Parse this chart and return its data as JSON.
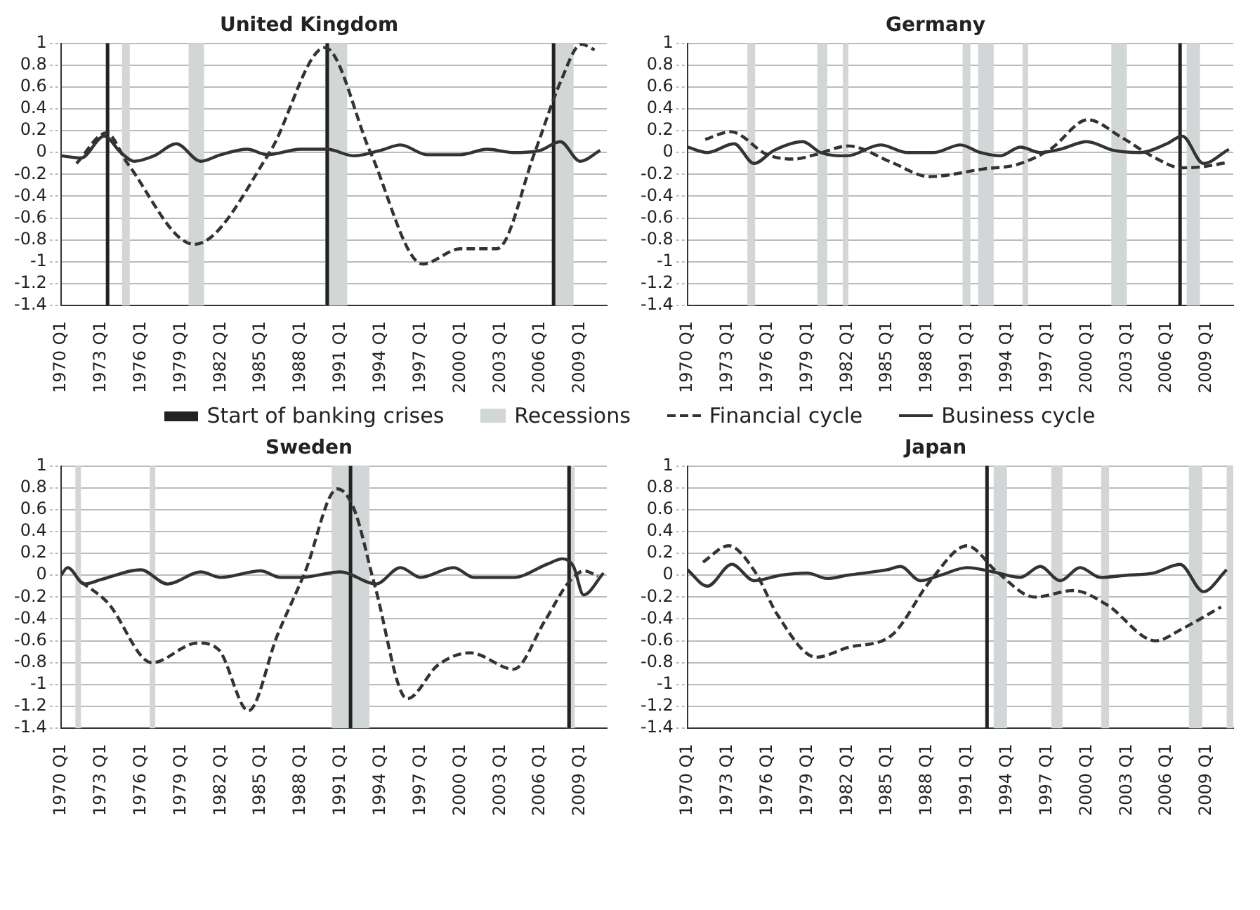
{
  "chart_data": [
    {
      "type": "line",
      "title": "United Kingdom",
      "xlim": [
        "1970-01",
        "2011-01"
      ],
      "ylim": [
        -1.4,
        1
      ],
      "xticks": [
        {
          "value": "1970-01",
          "label": "1970 Q1"
        },
        {
          "value": "1973-01",
          "label": "1973 Q1"
        },
        {
          "value": "1976-01",
          "label": "1976 Q1"
        },
        {
          "value": "1979-01",
          "label": "1979 Q1"
        },
        {
          "value": "1982-01",
          "label": "1982 Q1"
        },
        {
          "value": "1985-01",
          "label": "1985 Q1"
        },
        {
          "value": "1988-01",
          "label": "1988 Q1"
        },
        {
          "value": "1991-01",
          "label": "1991 Q1"
        },
        {
          "value": "1994-01",
          "label": "1994 Q1"
        },
        {
          "value": "1997-01",
          "label": "1997 Q1"
        },
        {
          "value": "2000-01",
          "label": "2000 Q1"
        },
        {
          "value": "2003-01",
          "label": "2003 Q1"
        },
        {
          "value": "2006-01",
          "label": "2006 Q1"
        },
        {
          "value": "2009-01",
          "label": "2009 Q1"
        }
      ],
      "yticks": [
        -1.4,
        -1.2,
        -1,
        -0.8,
        -0.6,
        -0.4,
        -0.2,
        0,
        0.2,
        0.4,
        0.6,
        0.8,
        1
      ],
      "grid": "y",
      "legend": "bottom",
      "series": [
        {
          "name": "Financial cycle",
          "color": "#333333",
          "line_style": "dashed",
          "x": [
            "1971-03",
            "1973-06",
            "1975-01",
            "1980-01",
            "1985-09",
            "1989-11",
            "1993-04",
            "1997-03",
            "2000-01",
            "2002-10",
            "2005-08",
            "2007-07",
            "2009-02",
            "2010-02"
          ],
          "values": [
            -0.1,
            0.18,
            -0.1,
            -0.84,
            0,
            0.96,
            0,
            -1.02,
            -0.88,
            -0.88,
            0,
            0.64,
            0.99,
            0.94
          ]
        },
        {
          "name": "Business cycle",
          "color": "#333333",
          "line_style": "solid",
          "x": [
            "1970-01",
            "1971-07",
            "1973-04",
            "1974-07",
            "1975-07",
            "1977-01",
            "1978-09",
            "1980-07",
            "1982-01",
            "1984-01",
            "1985-07",
            "1988-01",
            "1990-01",
            "1992-01",
            "1994-01",
            "1995-07",
            "1997-07",
            "2000-01",
            "2002-01",
            "2004-01",
            "2006-01",
            "2007-07",
            "2009-01",
            "2010-07"
          ],
          "values": [
            -0.03,
            -0.05,
            0.15,
            0,
            -0.08,
            -0.03,
            0.08,
            -0.08,
            -0.02,
            0.03,
            -0.02,
            0.03,
            0.03,
            -0.03,
            0.02,
            0.07,
            -0.02,
            -0.02,
            0.03,
            0,
            0.02,
            0.1,
            -0.08,
            0.02
          ]
        }
      ],
      "bands": [
        {
          "axis": "x",
          "from": "1974-08",
          "to": "1975-03",
          "color": "#d2d6d6",
          "label": "Recessions"
        },
        {
          "axis": "x",
          "from": "1979-08",
          "to": "1980-10",
          "color": "#d2d6d6"
        },
        {
          "axis": "x",
          "from": "1989-11",
          "to": "1991-07",
          "color": "#d2d6d6"
        },
        {
          "axis": "x",
          "from": "2007-02",
          "to": "2008-07",
          "color": "#d2d6d6"
        }
      ],
      "ref_lines": [
        {
          "axis": "x",
          "value": "1973-07",
          "color": "#222222",
          "label": "Start of banking crises"
        },
        {
          "axis": "x",
          "value": "1990-01",
          "color": "#222222"
        },
        {
          "axis": "x",
          "value": "2007-01",
          "color": "#222222"
        }
      ]
    },
    {
      "type": "line",
      "title": "Germany",
      "xlim": [
        "1970-01",
        "2011-01"
      ],
      "ylim": [
        -1.4,
        1
      ],
      "xticks": [
        {
          "value": "1970-01",
          "label": "1970 Q1"
        },
        {
          "value": "1973-01",
          "label": "1973 Q1"
        },
        {
          "value": "1976-01",
          "label": "1976 Q1"
        },
        {
          "value": "1979-01",
          "label": "1979 Q1"
        },
        {
          "value": "1982-01",
          "label": "1982 Q1"
        },
        {
          "value": "1985-01",
          "label": "1985 Q1"
        },
        {
          "value": "1988-01",
          "label": "1988 Q1"
        },
        {
          "value": "1991-01",
          "label": "1991 Q1"
        },
        {
          "value": "1994-01",
          "label": "1994 Q1"
        },
        {
          "value": "1997-01",
          "label": "1997 Q1"
        },
        {
          "value": "2000-01",
          "label": "2000 Q1"
        },
        {
          "value": "2003-01",
          "label": "2003 Q1"
        },
        {
          "value": "2006-01",
          "label": "2006 Q1"
        },
        {
          "value": "2009-01",
          "label": "2009 Q1"
        }
      ],
      "yticks": [
        -1.4,
        -1.2,
        -1,
        -0.8,
        -0.6,
        -0.4,
        -0.2,
        0,
        0.2,
        0.4,
        0.6,
        0.8,
        1
      ],
      "grid": "y",
      "series": [
        {
          "color": "#333333",
          "line_style": "dashed",
          "x": [
            "1971-05",
            "1973-04",
            "1976-01",
            "1978-01",
            "1979-08",
            "1982-02",
            "1985-05",
            "1988-03",
            "1992-04",
            "1994-10",
            "1997-04",
            "2000-02",
            "2002-08",
            "2005-01",
            "2007-02",
            "2008-09",
            "2010-08"
          ],
          "values": [
            0.12,
            0.19,
            -0.02,
            -0.06,
            -0.02,
            0.06,
            -0.09,
            -0.22,
            -0.15,
            -0.11,
            0.03,
            0.3,
            0.14,
            -0.04,
            -0.14,
            -0.13,
            -0.09
          ]
        },
        {
          "color": "#333333",
          "line_style": "solid",
          "x": [
            "1970-01",
            "1971-07",
            "1973-07",
            "1975-01",
            "1976-07",
            "1978-09",
            "1980-01",
            "1982-01",
            "1984-07",
            "1986-07",
            "1988-07",
            "1990-07",
            "1992-01",
            "1993-07",
            "1995-01",
            "1996-07",
            "1998-01",
            "2000-01",
            "2002-01",
            "2004-01",
            "2006-01",
            "2007-03",
            "2008-10",
            "2010-09"
          ],
          "values": [
            0.05,
            0,
            0.08,
            -0.1,
            0.02,
            0.1,
            0,
            -0.03,
            0.07,
            0,
            0,
            0.07,
            0,
            -0.03,
            0.05,
            0,
            0.03,
            0.1,
            0.02,
            0,
            0.08,
            0.15,
            -0.1,
            0.03
          ]
        }
      ],
      "bands": [
        {
          "axis": "x",
          "from": "1974-07",
          "to": "1975-02",
          "color": "#d2d6d6"
        },
        {
          "axis": "x",
          "from": "1979-10",
          "to": "1980-07",
          "color": "#d2d6d6"
        },
        {
          "axis": "x",
          "from": "1981-09",
          "to": "1982-02",
          "color": "#d2d6d6"
        },
        {
          "axis": "x",
          "from": "1990-09",
          "to": "1991-04",
          "color": "#d2d6d6"
        },
        {
          "axis": "x",
          "from": "1991-11",
          "to": "1993-01",
          "color": "#d2d6d6"
        },
        {
          "axis": "x",
          "from": "1995-03",
          "to": "1995-08",
          "color": "#d2d6d6"
        },
        {
          "axis": "x",
          "from": "2001-11",
          "to": "2003-01",
          "color": "#d2d6d6"
        },
        {
          "axis": "x",
          "from": "2007-07",
          "to": "2008-07",
          "color": "#d2d6d6"
        }
      ],
      "ref_lines": [
        {
          "axis": "x",
          "value": "2007-01",
          "color": "#222222"
        }
      ]
    },
    {
      "type": "line",
      "title": "Sweden",
      "xlim": [
        "1970-01",
        "2011-01"
      ],
      "ylim": [
        -1.4,
        1
      ],
      "xticks": [
        {
          "value": "1970-01",
          "label": "1970 Q1"
        },
        {
          "value": "1973-01",
          "label": "1973 Q1"
        },
        {
          "value": "1976-01",
          "label": "1976 Q1"
        },
        {
          "value": "1979-01",
          "label": "1979 Q1"
        },
        {
          "value": "1982-01",
          "label": "1982 Q1"
        },
        {
          "value": "1985-01",
          "label": "1985 Q1"
        },
        {
          "value": "1988-01",
          "label": "1988 Q1"
        },
        {
          "value": "1991-01",
          "label": "1991 Q1"
        },
        {
          "value": "1994-01",
          "label": "1994 Q1"
        },
        {
          "value": "1997-01",
          "label": "1997 Q1"
        },
        {
          "value": "2000-01",
          "label": "2000 Q1"
        },
        {
          "value": "2003-01",
          "label": "2003 Q1"
        },
        {
          "value": "2006-01",
          "label": "2006 Q1"
        },
        {
          "value": "2009-01",
          "label": "2009 Q1"
        }
      ],
      "yticks": [
        -1.4,
        -1.2,
        -1,
        -0.8,
        -0.6,
        -0.4,
        -0.2,
        0,
        0.2,
        0.4,
        0.6,
        0.8,
        1
      ],
      "grid": "y",
      "series": [
        {
          "color": "#333333",
          "line_style": "dashed",
          "x": [
            "1971-07",
            "1973-07",
            "1976-11",
            "1980-04",
            "1981-11",
            "1984-02",
            "1986-04",
            "1988-05",
            "1990-10",
            "1992-01",
            "1993-08",
            "1996-01",
            "1998-05",
            "2000-10",
            "2004-01",
            "2006-05",
            "2008-03",
            "2009-05",
            "2010-05"
          ],
          "values": [
            -0.06,
            -0.25,
            -0.8,
            -0.62,
            -0.68,
            -1.24,
            -0.55,
            0.03,
            0.79,
            0.61,
            -0.1,
            -1.13,
            -0.82,
            -0.71,
            -0.86,
            -0.42,
            -0.06,
            0.04,
            -0.01
          ]
        },
        {
          "color": "#333333",
          "line_style": "solid",
          "x": [
            "1970-01",
            "1970-07",
            "1971-10",
            "1973-01",
            "1976-01",
            "1978-01",
            "1980-07",
            "1982-01",
            "1985-01",
            "1986-07",
            "1988-01",
            "1991-01",
            "1993-09",
            "1995-07",
            "1997-01",
            "1999-07",
            "2001-01",
            "2004-01",
            "2006-07",
            "2007-09",
            "2008-07",
            "2009-04",
            "2010-10"
          ],
          "values": [
            0,
            0.07,
            -0.08,
            -0.04,
            0.05,
            -0.08,
            0.03,
            -0.02,
            0.04,
            -0.02,
            -0.02,
            0.03,
            -0.08,
            0.07,
            -0.02,
            0.07,
            -0.02,
            -0.02,
            0.1,
            0.15,
            0.08,
            -0.18,
            0.02
          ]
        }
      ],
      "bands": [
        {
          "axis": "x",
          "from": "1971-02",
          "to": "1971-07",
          "color": "#d2d6d6"
        },
        {
          "axis": "x",
          "from": "1976-09",
          "to": "1977-02",
          "color": "#d2d6d6"
        },
        {
          "axis": "x",
          "from": "1990-05",
          "to": "1993-03",
          "color": "#d2d6d6"
        },
        {
          "axis": "x",
          "from": "2008-01",
          "to": "2008-08",
          "color": "#d2d6d6"
        }
      ],
      "ref_lines": [
        {
          "axis": "x",
          "value": "1991-10",
          "color": "#222222"
        },
        {
          "axis": "x",
          "value": "2008-03",
          "color": "#222222"
        }
      ]
    },
    {
      "type": "line",
      "title": "Japan",
      "xlim": [
        "1970-01",
        "2011-01"
      ],
      "ylim": [
        -1.4,
        1
      ],
      "xticks": [
        {
          "value": "1970-01",
          "label": "1970 Q1"
        },
        {
          "value": "1973-01",
          "label": "1973 Q1"
        },
        {
          "value": "1976-01",
          "label": "1976 Q1"
        },
        {
          "value": "1979-01",
          "label": "1979 Q1"
        },
        {
          "value": "1982-01",
          "label": "1982 Q1"
        },
        {
          "value": "1985-01",
          "label": "1985 Q1"
        },
        {
          "value": "1988-01",
          "label": "1988 Q1"
        },
        {
          "value": "1991-01",
          "label": "1991 Q1"
        },
        {
          "value": "1994-01",
          "label": "1994 Q1"
        },
        {
          "value": "1997-01",
          "label": "1997 Q1"
        },
        {
          "value": "2000-01",
          "label": "2000 Q1"
        },
        {
          "value": "2003-01",
          "label": "2003 Q1"
        },
        {
          "value": "2006-01",
          "label": "2006 Q1"
        },
        {
          "value": "2009-01",
          "label": "2009 Q1"
        }
      ],
      "yticks": [
        -1.4,
        -1.2,
        -1,
        -0.8,
        -0.6,
        -0.4,
        -0.2,
        0,
        0.2,
        0.4,
        0.6,
        0.8,
        1
      ],
      "grid": "y",
      "series": [
        {
          "color": "#333333",
          "line_style": "dashed",
          "x": [
            "1971-03",
            "1973-02",
            "1975-02",
            "1976-10",
            "1979-09",
            "1982-02",
            "1985-05",
            "1988-04",
            "1991-01",
            "1993-04",
            "1996-02",
            "1999-01",
            "2001-07",
            "2005-03",
            "2007-03",
            "2010-02"
          ],
          "values": [
            0.12,
            0.27,
            0.03,
            -0.36,
            -0.75,
            -0.66,
            -0.55,
            -0.05,
            0.27,
            0.03,
            -0.2,
            -0.14,
            -0.27,
            -0.6,
            -0.49,
            -0.29
          ]
        },
        {
          "color": "#333333",
          "line_style": "solid",
          "x": [
            "1970-01",
            "1971-07",
            "1973-05",
            "1975-01",
            "1977-01",
            "1979-01",
            "1980-07",
            "1982-01",
            "1985-01",
            "1986-01",
            "1987-07",
            "1989-01",
            "1991-01",
            "1993-01",
            "1995-01",
            "1996-07",
            "1998-01",
            "1999-07",
            "2001-01",
            "2003-01",
            "2005-01",
            "2007-01",
            "2008-10",
            "2010-07"
          ],
          "values": [
            0.05,
            -0.1,
            0.1,
            -0.05,
            0,
            0.02,
            -0.03,
            0,
            0.05,
            0.08,
            -0.05,
            0,
            0.07,
            0.03,
            -0.02,
            0.08,
            -0.05,
            0.07,
            -0.02,
            0,
            0.02,
            0.1,
            -0.15,
            0.05
          ]
        }
      ],
      "bands": [
        {
          "axis": "x",
          "from": "1993-01",
          "to": "1994-01",
          "color": "#d2d6d6"
        },
        {
          "axis": "x",
          "from": "1997-05",
          "to": "1998-03",
          "color": "#d2d6d6"
        },
        {
          "axis": "x",
          "from": "2001-02",
          "to": "2001-09",
          "color": "#d2d6d6"
        },
        {
          "axis": "x",
          "from": "2007-09",
          "to": "2008-09",
          "color": "#d2d6d6"
        },
        {
          "axis": "x",
          "from": "2010-07",
          "to": "2011-01",
          "color": "#d2d6d6"
        }
      ],
      "ref_lines": [
        {
          "axis": "x",
          "value": "1992-07",
          "color": "#222222"
        }
      ]
    }
  ]
}
